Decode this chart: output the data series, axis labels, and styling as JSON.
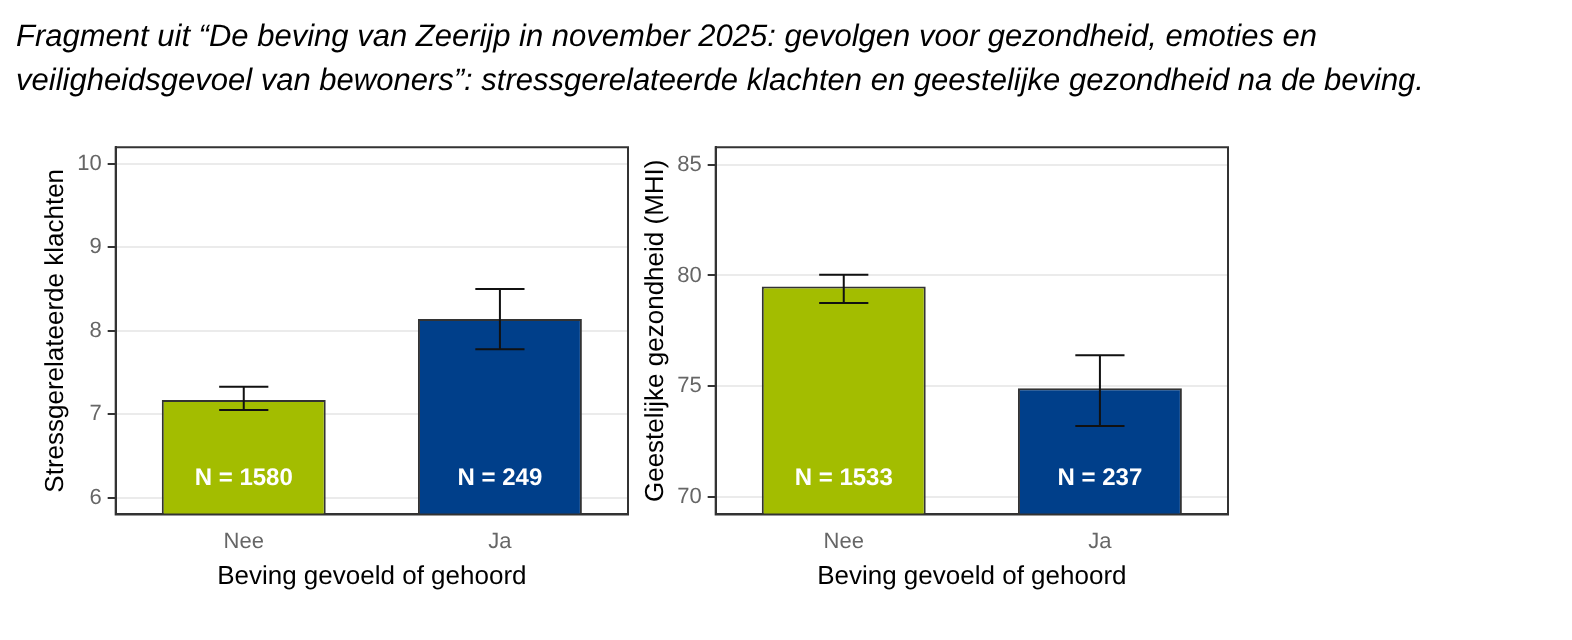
{
  "chart_data": [
    {
      "type": "bar",
      "title": "Fragment uit “De beving van Zeerijp in november 2025: gevolgen voor gezondheid, emoties en veiligheidsgevoel van bewoners”: stressgerelateerde klachten en geestelijke gezondheid na de beving.",
      "xlabel": "Beving gevoeld of gehoord",
      "ylabel": "Stressgerelateerde klachten",
      "categories": [
        "Nee",
        "Ja"
      ],
      "values": [
        7.17,
        8.14
      ],
      "colors": [
        "#a3bd00",
        "#003f8a"
      ],
      "errors": [
        [
          7.05,
          7.33
        ],
        [
          7.78,
          8.5
        ]
      ],
      "ylim": [
        5.8,
        10.2
      ],
      "yticks": [
        6,
        7,
        8,
        9,
        10
      ],
      "grid": "y",
      "legend": false,
      "annotations": [
        "N = 1580",
        "N = 249"
      ]
    },
    {
      "type": "bar",
      "xlabel": "Beving gevoeld of gehoord",
      "ylabel": "Geestelijke gezondheid (MHI)",
      "categories": [
        "Nee",
        "Ja"
      ],
      "values": [
        79.5,
        74.9
      ],
      "colors": [
        "#a3bd00",
        "#003f8a"
      ],
      "errors": [
        [
          78.76,
          80.03
        ],
        [
          73.2,
          76.4
        ]
      ],
      "ylim": [
        69.2,
        85.8
      ],
      "yticks": [
        70,
        75,
        80,
        85
      ],
      "grid": "y",
      "legend": false,
      "annotations": [
        "N = 1533",
        "N = 237"
      ]
    }
  ]
}
